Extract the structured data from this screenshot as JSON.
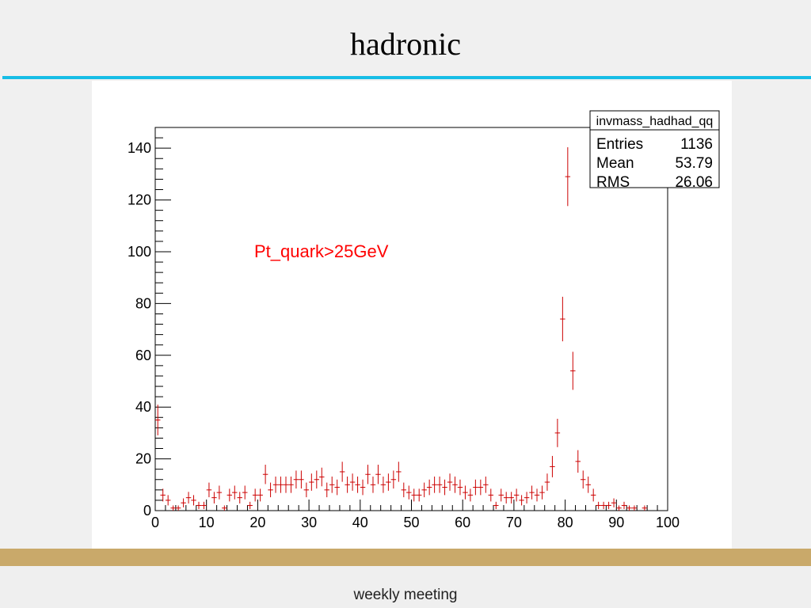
{
  "slide": {
    "title": "hadronic",
    "footer": "weekly meeting",
    "accent_color": "#17bde6",
    "band_color": "#c9a96a"
  },
  "chart_data": {
    "type": "scatter",
    "style": "histogram-with-error-bars",
    "marker_color": "#cc0000",
    "error_color": "#cc0000",
    "xlim": [
      0,
      100
    ],
    "ylim": [
      0,
      148
    ],
    "x_ticks": [
      "0",
      "10",
      "20",
      "30",
      "40",
      "50",
      "60",
      "70",
      "80",
      "90",
      "100"
    ],
    "y_ticks": [
      "0",
      "20",
      "40",
      "60",
      "80",
      "100",
      "120",
      "140"
    ],
    "annotation": {
      "text": "Pt_quark>25GeV",
      "color": "#ff0000"
    },
    "stats_box": {
      "title": "invmass_hadhad_qq",
      "rows": [
        {
          "label": "Entries",
          "value": "1136"
        },
        {
          "label": "Mean",
          "value": "53.79"
        },
        {
          "label": "RMS",
          "value": "26.06"
        }
      ]
    },
    "bin_width": 1,
    "x": [
      0.5,
      1.5,
      2.5,
      3.5,
      4.5,
      5.5,
      6.5,
      7.5,
      8.5,
      9.5,
      10.5,
      11.5,
      12.5,
      13.5,
      14.5,
      15.5,
      16.5,
      17.5,
      18.5,
      19.5,
      20.5,
      21.5,
      22.5,
      23.5,
      24.5,
      25.5,
      26.5,
      27.5,
      28.5,
      29.5,
      30.5,
      31.5,
      32.5,
      33.5,
      34.5,
      35.5,
      36.5,
      37.5,
      38.5,
      39.5,
      40.5,
      41.5,
      42.5,
      43.5,
      44.5,
      45.5,
      46.5,
      47.5,
      48.5,
      49.5,
      50.5,
      51.5,
      52.5,
      53.5,
      54.5,
      55.5,
      56.5,
      57.5,
      58.5,
      59.5,
      60.5,
      61.5,
      62.5,
      63.5,
      64.5,
      65.5,
      66.5,
      67.5,
      68.5,
      69.5,
      70.5,
      71.5,
      72.5,
      73.5,
      74.5,
      75.5,
      76.5,
      77.5,
      78.5,
      79.5,
      80.5,
      81.5,
      82.5,
      83.5,
      84.5,
      85.5,
      86.5,
      87.5,
      88.5,
      89.5,
      90.5,
      91.5,
      92.5,
      93.5,
      94.5,
      95.5
    ],
    "values": [
      35,
      6,
      4,
      1,
      1,
      3,
      5,
      4,
      2,
      2,
      8,
      5,
      7,
      1,
      6,
      7,
      5,
      7,
      2,
      6,
      6,
      14,
      8,
      10,
      10,
      10,
      10,
      12,
      12,
      8,
      11,
      12,
      13,
      8,
      10,
      9,
      15,
      10,
      11,
      10,
      9,
      14,
      10,
      14,
      10,
      11,
      12,
      15,
      8,
      7,
      6,
      6,
      8,
      9,
      10,
      10,
      9,
      11,
      10,
      9,
      7,
      6,
      9,
      9,
      10,
      6,
      2,
      6,
      5,
      5,
      6,
      4,
      5,
      7,
      6,
      7,
      11,
      17,
      30,
      74,
      129,
      54,
      19,
      12,
      10,
      6,
      2,
      2,
      2,
      3,
      1,
      2,
      1,
      1,
      0,
      1
    ]
  }
}
